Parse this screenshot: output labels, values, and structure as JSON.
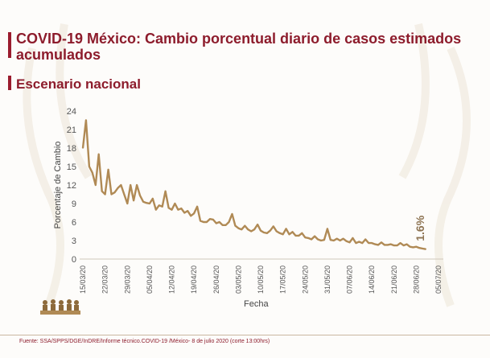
{
  "header": {
    "title": "COVID-19 México: Cambio porcentual diario de casos estimados acumulados",
    "subtitle": "Escenario nacional"
  },
  "footer": {
    "source": "Fuente: SSA/SPPS/DGE/InDRE/Informe técnico.COVID-19 /México- 8 de julio 2020 (corte 13:00hrs)"
  },
  "colors": {
    "line": "#b08a55",
    "title": "#8d1c2c",
    "accent_bar": "#9b1c2e"
  },
  "chart_data": {
    "type": "line",
    "xlabel": "Fecha",
    "ylabel": "Porcentaje de Cambio",
    "ylim": [
      0,
      24
    ],
    "yticks": [
      0,
      3,
      6,
      9,
      12,
      15,
      18,
      21,
      24
    ],
    "xticks": [
      "15/03/20",
      "22/03/20",
      "29/03/20",
      "05/04/20",
      "12/04/20",
      "19/04/20",
      "26/04/20",
      "03/05/20",
      "10/05/20",
      "17/05/20",
      "24/05/20",
      "31/05/20",
      "07/06/20",
      "14/06/20",
      "21/06/20",
      "28/06/20",
      "05/07/20"
    ],
    "grid": false,
    "annotation": "1.6%",
    "series": [
      {
        "values": [
          18,
          22.5,
          15,
          14,
          12,
          17,
          11,
          10.5,
          14.5,
          10.5,
          10.8,
          11.5,
          12,
          10.5,
          9,
          12,
          9.5,
          12,
          10.3,
          9.3,
          9.1,
          9,
          9.8,
          8,
          8.7,
          8.5,
          11,
          8.3,
          8,
          9,
          8,
          8.2,
          7.5,
          7.8,
          7,
          7.4,
          8.5,
          6.2,
          6,
          6,
          6.5,
          6.4,
          5.8,
          6,
          5.5,
          5.5,
          6,
          7.3,
          5.4,
          5,
          4.8,
          5.4,
          4.8,
          4.5,
          4.8,
          5.6,
          4.6,
          4.3,
          4.2,
          4.6,
          5.3,
          4.5,
          4.2,
          4,
          4.9,
          4,
          4.4,
          3.8,
          3.8,
          4.2,
          3.5,
          3.4,
          3.2,
          3.7,
          3.2,
          3,
          3.1,
          4.9,
          3.1,
          3,
          3.3,
          3,
          3.3,
          2.9,
          2.7,
          3.4,
          2.6,
          2.8,
          2.6,
          3.2,
          2.6,
          2.6,
          2.4,
          2.3,
          2.7,
          2.3,
          2.3,
          2.4,
          2.2,
          2.2,
          2.6,
          2.2,
          2.4,
          2,
          1.9,
          2,
          1.8,
          1.7,
          1.6
        ]
      }
    ]
  }
}
